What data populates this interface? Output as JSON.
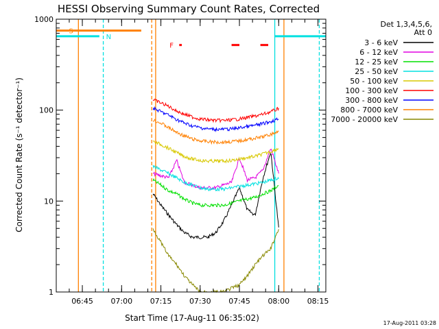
{
  "chart_data": {
    "type": "line",
    "title": "HESSI Observing Summary Count Rates, Corrected",
    "xlabel": "Start Time (17-Aug-11 06:35:02)",
    "ylabel": "Corrected Count Rate (s⁻¹ detector⁻¹)",
    "yscale": "log",
    "ylim": [
      1,
      1000
    ],
    "xlim": [
      "06:35:02",
      "08:18:00"
    ],
    "x_ticks": [
      "06:45",
      "07:00",
      "07:15",
      "07:30",
      "07:45",
      "08:00",
      "08:15"
    ],
    "y_ticks": [
      "1",
      "10",
      "100",
      "1000"
    ],
    "timestamp": "17-Aug-2011 03:28",
    "legend": {
      "title_line1": "Det 1,3,4,5,6,",
      "title_line2": "Att 0",
      "entries": [
        {
          "label": "3 - 6 keV",
          "color": "#000000"
        },
        {
          "label": "6 - 12 keV",
          "color": "#e000e0"
        },
        {
          "label": "12 - 25 keV",
          "color": "#00e000"
        },
        {
          "label": "25 - 50 keV",
          "color": "#00e0e0"
        },
        {
          "label": "50 - 100 keV",
          "color": "#d8c800"
        },
        {
          "label": "100 - 300 keV",
          "color": "#ff0000"
        },
        {
          "label": "300 - 800 keV",
          "color": "#0000ff"
        },
        {
          "label": "800 - 7000 keV",
          "color": "#ff8000"
        },
        {
          "label": "7000 - 20000 keV",
          "color": "#888800"
        }
      ]
    },
    "data_interval": {
      "start": "07:12:00",
      "end": "08:01:00"
    },
    "series": [
      {
        "name": "3 - 6 keV",
        "color": "#000000",
        "x": [
          "07:12",
          "07:15",
          "07:18",
          "07:21",
          "07:24",
          "07:27",
          "07:30",
          "07:33",
          "07:36",
          "07:39",
          "07:42",
          "07:45",
          "07:48",
          "07:51",
          "07:54",
          "07:57",
          "08:00"
        ],
        "y": [
          12,
          9,
          7,
          5.5,
          4.5,
          4,
          4,
          4,
          4.5,
          6,
          9,
          14,
          8,
          7,
          18,
          35,
          5
        ]
      },
      {
        "name": "6 - 12 keV",
        "color": "#e000e0",
        "x": [
          "07:12",
          "07:15",
          "07:18",
          "07:21",
          "07:24",
          "07:27",
          "07:30",
          "07:33",
          "07:36",
          "07:39",
          "07:42",
          "07:45",
          "07:48",
          "07:51",
          "07:54",
          "07:57",
          "08:00"
        ],
        "y": [
          20,
          19,
          18,
          28,
          16,
          15,
          14,
          14,
          14,
          15,
          16,
          30,
          17,
          18,
          22,
          38,
          20
        ]
      },
      {
        "name": "12 - 25 keV",
        "color": "#00e000",
        "x": [
          "07:12",
          "07:15",
          "07:18",
          "07:21",
          "07:24",
          "07:27",
          "07:30",
          "07:33",
          "07:36",
          "07:39",
          "07:42",
          "07:45",
          "07:48",
          "07:51",
          "07:54",
          "07:57",
          "08:00"
        ],
        "y": [
          17,
          15,
          13,
          12,
          10.5,
          9.5,
          9,
          9,
          9,
          9,
          9.5,
          10,
          10.5,
          11,
          12,
          13,
          15
        ]
      },
      {
        "name": "25 - 50 keV",
        "color": "#00e0e0",
        "x": [
          "07:12",
          "07:15",
          "07:18",
          "07:21",
          "07:24",
          "07:27",
          "07:30",
          "07:33",
          "07:36",
          "07:39",
          "07:42",
          "07:45",
          "07:48",
          "07:51",
          "07:54",
          "07:57",
          "08:00"
        ],
        "y": [
          24,
          22,
          20,
          18,
          16,
          15,
          14,
          13.5,
          13.5,
          13.5,
          14,
          14.5,
          15,
          15.5,
          16,
          17,
          18
        ]
      },
      {
        "name": "50 - 100 keV",
        "color": "#d8c800",
        "x": [
          "07:12",
          "07:15",
          "07:18",
          "07:21",
          "07:24",
          "07:27",
          "07:30",
          "07:33",
          "07:36",
          "07:39",
          "07:42",
          "07:45",
          "07:48",
          "07:51",
          "07:54",
          "07:57",
          "08:00"
        ],
        "y": [
          45,
          42,
          38,
          34,
          31,
          29,
          28,
          27.5,
          27.5,
          27.5,
          28,
          29,
          30,
          31,
          33,
          35,
          38
        ]
      },
      {
        "name": "100 - 300 keV",
        "color": "#ff0000",
        "x": [
          "07:12",
          "07:15",
          "07:18",
          "07:21",
          "07:24",
          "07:27",
          "07:30",
          "07:33",
          "07:36",
          "07:39",
          "07:42",
          "07:45",
          "07:48",
          "07:51",
          "07:54",
          "07:57",
          "08:00"
        ],
        "y": [
          130,
          120,
          110,
          98,
          90,
          84,
          80,
          78,
          77,
          77,
          78,
          80,
          83,
          86,
          90,
          96,
          104
        ]
      },
      {
        "name": "300 - 800 keV",
        "color": "#0000ff",
        "x": [
          "07:12",
          "07:15",
          "07:18",
          "07:21",
          "07:24",
          "07:27",
          "07:30",
          "07:33",
          "07:36",
          "07:39",
          "07:42",
          "07:45",
          "07:48",
          "07:51",
          "07:54",
          "07:57",
          "08:00"
        ],
        "y": [
          105,
          96,
          88,
          79,
          72,
          67,
          64,
          62,
          61.5,
          61.5,
          62,
          64,
          66,
          68,
          71,
          75,
          80
        ]
      },
      {
        "name": "800 - 7000 keV",
        "color": "#ff8000",
        "x": [
          "07:12",
          "07:15",
          "07:18",
          "07:21",
          "07:24",
          "07:27",
          "07:30",
          "07:33",
          "07:36",
          "07:39",
          "07:42",
          "07:45",
          "07:48",
          "07:51",
          "07:54",
          "07:57",
          "08:00"
        ],
        "y": [
          78,
          72,
          64,
          57,
          52,
          48,
          46,
          45,
          44.5,
          44.5,
          45,
          46,
          47.5,
          49,
          51,
          54,
          58
        ]
      },
      {
        "name": "7000 - 20000 keV",
        "color": "#888800",
        "x": [
          "07:12",
          "07:15",
          "07:18",
          "07:21",
          "07:24",
          "07:27",
          "07:30",
          "07:33",
          "07:36",
          "07:39",
          "07:42",
          "07:45",
          "07:48",
          "07:51",
          "07:54",
          "07:57",
          "08:00"
        ],
        "y": [
          5,
          3.5,
          2.5,
          2,
          1.5,
          1.2,
          1,
          1,
          1,
          1,
          1.1,
          1.2,
          1.5,
          2,
          2.5,
          3,
          5
        ]
      }
    ],
    "markers": [
      {
        "label": "S",
        "color": "#ff8000",
        "x_start": "06:35:02",
        "x_end": "07:07:30",
        "level": 750
      },
      {
        "label": "N",
        "color": "#00e0e0",
        "x_start": "06:35:02",
        "x_end": "06:51:30",
        "level": 650
      },
      {
        "label": "N",
        "color": "#00e0e0",
        "x_start": "07:58:30",
        "x_end": "08:18:00",
        "level": 650
      },
      {
        "label": "F",
        "color": "#ff0000",
        "segments": [
          [
            "07:22:00",
            "07:23:00"
          ],
          [
            "07:42:00",
            "07:45:00"
          ],
          [
            "07:53:00",
            "07:56:00"
          ]
        ],
        "level": 520
      }
    ],
    "vertical_lines": [
      {
        "x": "06:43:30",
        "color": "#ff8000",
        "style": "solid"
      },
      {
        "x": "06:53:00",
        "color": "#00e0e0",
        "style": "dashed"
      },
      {
        "x": "07:11:30",
        "color": "#ff8000",
        "style": "dashed"
      },
      {
        "x": "07:13:00",
        "color": "#ff8000",
        "style": "solid"
      },
      {
        "x": "07:58:30",
        "color": "#00e0e0",
        "style": "solid"
      },
      {
        "x": "08:02:00",
        "color": "#ff8000",
        "style": "solid"
      },
      {
        "x": "08:15:30",
        "color": "#00e0e0",
        "style": "dashed"
      }
    ],
    "grid": false
  }
}
